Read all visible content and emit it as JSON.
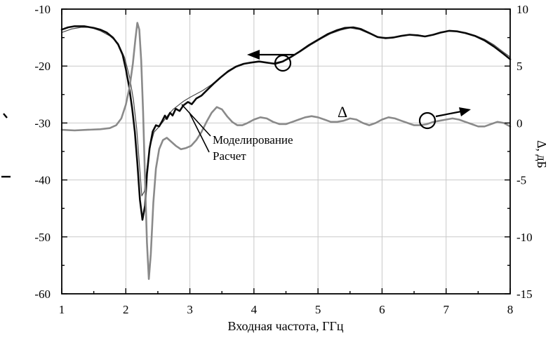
{
  "chart_data": {
    "type": "line",
    "title": "",
    "xlabel": "Входная частота, ГГц",
    "ylabel_left": "",
    "ylabel_right": "Δ, дБ",
    "xlim": [
      1,
      8
    ],
    "ylim_left": [
      -60,
      -10
    ],
    "ylim_right": [
      -15,
      10
    ],
    "x_ticks": [
      1,
      2,
      3,
      4,
      5,
      6,
      7,
      8
    ],
    "y_ticks_left": [
      -10,
      -20,
      -30,
      -40,
      -50,
      -60
    ],
    "y_ticks_right": [
      10,
      5,
      0,
      -5,
      -10,
      -15
    ],
    "grid": true,
    "legend_position": "none",
    "series": [
      {
        "name": "Расчет",
        "axis": "left",
        "color": "#4a4a4a",
        "width": 1.2,
        "points": [
          [
            1.0,
            -14.1
          ],
          [
            1.15,
            -13.5
          ],
          [
            1.3,
            -13.2
          ],
          [
            1.45,
            -13.2
          ],
          [
            1.6,
            -13.8
          ],
          [
            1.75,
            -14.7
          ],
          [
            1.88,
            -16.0
          ],
          [
            1.98,
            -18.5
          ],
          [
            2.06,
            -22.0
          ],
          [
            2.12,
            -26.0
          ],
          [
            2.17,
            -31.0
          ],
          [
            2.21,
            -37.0
          ],
          [
            2.25,
            -42.8
          ],
          [
            2.29,
            -42.0
          ],
          [
            2.33,
            -38.0
          ],
          [
            2.38,
            -34.0
          ],
          [
            2.44,
            -31.6
          ],
          [
            2.5,
            -30.9
          ],
          [
            2.58,
            -29.8
          ],
          [
            2.66,
            -28.6
          ],
          [
            2.74,
            -27.6
          ],
          [
            2.82,
            -26.9
          ],
          [
            2.9,
            -26.2
          ],
          [
            3.0,
            -25.5
          ],
          [
            3.1,
            -24.9
          ],
          [
            3.2,
            -24.3
          ],
          [
            3.32,
            -23.4
          ],
          [
            3.45,
            -22.3
          ],
          [
            3.58,
            -21.2
          ],
          [
            3.72,
            -20.2
          ],
          [
            3.86,
            -19.6
          ],
          [
            4.0,
            -19.3
          ],
          [
            4.15,
            -19.3
          ],
          [
            4.3,
            -19.5
          ],
          [
            4.45,
            -19.1
          ],
          [
            4.6,
            -18.3
          ],
          [
            4.75,
            -17.3
          ],
          [
            4.9,
            -16.2
          ],
          [
            5.05,
            -15.2
          ],
          [
            5.2,
            -14.3
          ],
          [
            5.35,
            -13.7
          ],
          [
            5.5,
            -13.3
          ],
          [
            5.65,
            -13.6
          ],
          [
            5.8,
            -14.3
          ],
          [
            5.95,
            -14.9
          ],
          [
            6.1,
            -15.0
          ],
          [
            6.25,
            -14.8
          ],
          [
            6.4,
            -14.5
          ],
          [
            6.55,
            -14.5
          ],
          [
            6.7,
            -14.8
          ],
          [
            6.85,
            -14.4
          ],
          [
            7.0,
            -13.9
          ],
          [
            7.15,
            -13.9
          ],
          [
            7.3,
            -14.1
          ],
          [
            7.45,
            -14.6
          ],
          [
            7.6,
            -15.3
          ],
          [
            7.75,
            -16.3
          ],
          [
            7.9,
            -17.6
          ],
          [
            8.0,
            -18.4
          ]
        ]
      },
      {
        "name": "Моделирование",
        "axis": "left",
        "color": "#0a0a0a",
        "width": 2.6,
        "points": [
          [
            1.0,
            -13.6
          ],
          [
            1.1,
            -13.2
          ],
          [
            1.2,
            -13.0
          ],
          [
            1.35,
            -13.0
          ],
          [
            1.5,
            -13.3
          ],
          [
            1.6,
            -13.6
          ],
          [
            1.7,
            -14.1
          ],
          [
            1.8,
            -15.0
          ],
          [
            1.88,
            -16.2
          ],
          [
            1.95,
            -18.0
          ],
          [
            2.0,
            -20.5
          ],
          [
            2.05,
            -23.5
          ],
          [
            2.1,
            -27.5
          ],
          [
            2.14,
            -31.5
          ],
          [
            2.18,
            -37.0
          ],
          [
            2.22,
            -43.5
          ],
          [
            2.26,
            -47.0
          ],
          [
            2.3,
            -44.5
          ],
          [
            2.33,
            -39.0
          ],
          [
            2.37,
            -34.5
          ],
          [
            2.42,
            -31.5
          ],
          [
            2.47,
            -30.4
          ],
          [
            2.52,
            -30.6
          ],
          [
            2.57,
            -29.6
          ],
          [
            2.61,
            -28.7
          ],
          [
            2.64,
            -29.3
          ],
          [
            2.69,
            -28.2
          ],
          [
            2.73,
            -28.7
          ],
          [
            2.78,
            -27.5
          ],
          [
            2.84,
            -27.9
          ],
          [
            2.9,
            -26.9
          ],
          [
            2.97,
            -26.3
          ],
          [
            3.03,
            -26.7
          ],
          [
            3.1,
            -25.7
          ],
          [
            3.18,
            -25.2
          ],
          [
            3.27,
            -24.2
          ],
          [
            3.37,
            -23.1
          ],
          [
            3.48,
            -22.0
          ],
          [
            3.6,
            -20.9
          ],
          [
            3.72,
            -20.1
          ],
          [
            3.84,
            -19.6
          ],
          [
            3.95,
            -19.4
          ],
          [
            4.08,
            -19.2
          ],
          [
            4.2,
            -19.4
          ],
          [
            4.33,
            -19.6
          ],
          [
            4.45,
            -19.2
          ],
          [
            4.58,
            -18.4
          ],
          [
            4.72,
            -17.4
          ],
          [
            4.86,
            -16.3
          ],
          [
            5.0,
            -15.4
          ],
          [
            5.15,
            -14.4
          ],
          [
            5.3,
            -13.7
          ],
          [
            5.42,
            -13.3
          ],
          [
            5.55,
            -13.2
          ],
          [
            5.67,
            -13.5
          ],
          [
            5.8,
            -14.2
          ],
          [
            5.93,
            -14.9
          ],
          [
            6.05,
            -15.1
          ],
          [
            6.17,
            -15.0
          ],
          [
            6.3,
            -14.7
          ],
          [
            6.43,
            -14.5
          ],
          [
            6.55,
            -14.6
          ],
          [
            6.67,
            -14.8
          ],
          [
            6.8,
            -14.5
          ],
          [
            6.92,
            -14.1
          ],
          [
            7.05,
            -13.8
          ],
          [
            7.17,
            -13.9
          ],
          [
            7.3,
            -14.2
          ],
          [
            7.45,
            -14.7
          ],
          [
            7.6,
            -15.5
          ],
          [
            7.75,
            -16.6
          ],
          [
            7.9,
            -17.9
          ],
          [
            8.0,
            -18.8
          ]
        ]
      },
      {
        "name": "Δ",
        "axis": "right",
        "color": "#8a8a8a",
        "width": 2.6,
        "points": [
          [
            1.0,
            -0.6
          ],
          [
            1.2,
            -0.65
          ],
          [
            1.4,
            -0.6
          ],
          [
            1.6,
            -0.55
          ],
          [
            1.75,
            -0.45
          ],
          [
            1.85,
            -0.2
          ],
          [
            1.93,
            0.4
          ],
          [
            2.0,
            1.6
          ],
          [
            2.06,
            3.2
          ],
          [
            2.11,
            5.2
          ],
          [
            2.15,
            7.4
          ],
          [
            2.18,
            8.8
          ],
          [
            2.21,
            8.2
          ],
          [
            2.24,
            5.5
          ],
          [
            2.27,
            1.0
          ],
          [
            2.3,
            -5.0
          ],
          [
            2.33,
            -10.5
          ],
          [
            2.36,
            -13.7
          ],
          [
            2.39,
            -11.5
          ],
          [
            2.43,
            -7.0
          ],
          [
            2.47,
            -4.0
          ],
          [
            2.52,
            -2.3
          ],
          [
            2.58,
            -1.5
          ],
          [
            2.64,
            -1.3
          ],
          [
            2.7,
            -1.6
          ],
          [
            2.78,
            -2.0
          ],
          [
            2.86,
            -2.3
          ],
          [
            2.94,
            -2.2
          ],
          [
            3.02,
            -2.0
          ],
          [
            3.1,
            -1.5
          ],
          [
            3.18,
            -0.8
          ],
          [
            3.26,
            0.1
          ],
          [
            3.34,
            0.9
          ],
          [
            3.42,
            1.4
          ],
          [
            3.5,
            1.2
          ],
          [
            3.58,
            0.6
          ],
          [
            3.66,
            0.1
          ],
          [
            3.74,
            -0.2
          ],
          [
            3.82,
            -0.2
          ],
          [
            3.9,
            0.0
          ],
          [
            4.0,
            0.3
          ],
          [
            4.1,
            0.5
          ],
          [
            4.2,
            0.4
          ],
          [
            4.3,
            0.1
          ],
          [
            4.4,
            -0.1
          ],
          [
            4.5,
            -0.1
          ],
          [
            4.6,
            0.1
          ],
          [
            4.7,
            0.3
          ],
          [
            4.8,
            0.5
          ],
          [
            4.9,
            0.6
          ],
          [
            5.0,
            0.5
          ],
          [
            5.1,
            0.3
          ],
          [
            5.2,
            0.1
          ],
          [
            5.3,
            0.1
          ],
          [
            5.4,
            0.2
          ],
          [
            5.5,
            0.4
          ],
          [
            5.6,
            0.3
          ],
          [
            5.7,
            0.0
          ],
          [
            5.8,
            -0.2
          ],
          [
            5.9,
            0.0
          ],
          [
            6.0,
            0.3
          ],
          [
            6.1,
            0.5
          ],
          [
            6.2,
            0.4
          ],
          [
            6.3,
            0.2
          ],
          [
            6.4,
            0.0
          ],
          [
            6.5,
            -0.2
          ],
          [
            6.6,
            -0.2
          ],
          [
            6.7,
            -0.1
          ],
          [
            6.8,
            0.1
          ],
          [
            6.9,
            0.2
          ],
          [
            7.0,
            0.3
          ],
          [
            7.1,
            0.4
          ],
          [
            7.2,
            0.3
          ],
          [
            7.3,
            0.1
          ],
          [
            7.4,
            -0.1
          ],
          [
            7.5,
            -0.3
          ],
          [
            7.6,
            -0.3
          ],
          [
            7.7,
            -0.1
          ],
          [
            7.8,
            0.1
          ],
          [
            7.9,
            0.0
          ],
          [
            8.0,
            -0.3
          ]
        ]
      }
    ],
    "annotations": {
      "series_thick_label": "Моделирование",
      "series_thin_label": "Расчет",
      "delta_label": "Δ"
    }
  }
}
